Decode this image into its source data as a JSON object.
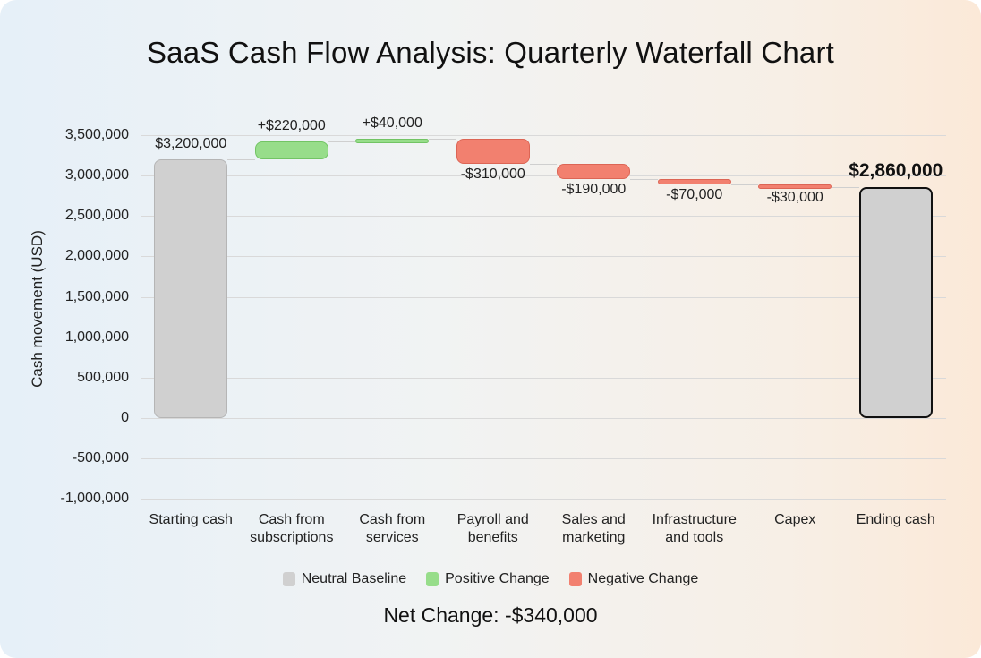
{
  "title": "SaaS Cash Flow Analysis: Quarterly Waterfall Chart",
  "footer": {
    "net_change": "Net Change: -$340,000"
  },
  "legend": [
    {
      "label": "Neutral Baseline",
      "color": "#d0d0d0"
    },
    {
      "label": "Positive Change",
      "color": "#97dd8a"
    },
    {
      "label": "Negative Change",
      "color": "#f2806f"
    }
  ],
  "axis": {
    "ylabel": "Cash movement (USD)",
    "yticks": [
      "3,500,000",
      "3,000,000",
      "2,500,000",
      "2,000,000",
      "1,500,000",
      "1,000,000",
      "500,000",
      "0",
      "-500,000",
      "-1,000,000"
    ]
  },
  "bars": [
    {
      "category": "Starting cash",
      "label": "$3,200,000"
    },
    {
      "category": "Cash from subscriptions",
      "label": "+$220,000"
    },
    {
      "category": "Cash from services",
      "label": "+$40,000"
    },
    {
      "category": "Payroll and benefits",
      "label": "-$310,000"
    },
    {
      "category": "Sales and marketing",
      "label": "-$190,000"
    },
    {
      "category": "Infrastructure and tools",
      "label": "-$70,000"
    },
    {
      "category": "Capex",
      "label": "-$30,000"
    },
    {
      "category": "Ending cash",
      "label": "$2,860,000"
    }
  ],
  "chart_data": {
    "type": "bar",
    "subtype": "waterfall",
    "title": "SaaS Cash Flow Analysis: Quarterly Waterfall Chart",
    "xlabel": "",
    "ylabel": "Cash movement (USD)",
    "ylim": [
      -1000000,
      3500000
    ],
    "yticks": [
      -1000000,
      -500000,
      0,
      500000,
      1000000,
      1500000,
      2000000,
      2500000,
      3000000,
      3500000
    ],
    "grid": true,
    "legend_position": "bottom",
    "categories": [
      "Starting cash",
      "Cash from subscriptions",
      "Cash from services",
      "Payroll and benefits",
      "Sales and marketing",
      "Infrastructure and tools",
      "Capex",
      "Ending cash"
    ],
    "values": [
      3200000,
      220000,
      40000,
      -310000,
      -190000,
      -70000,
      -30000,
      2860000
    ],
    "kinds": [
      "total",
      "delta",
      "delta",
      "delta",
      "delta",
      "delta",
      "delta",
      "total"
    ],
    "bar_ranges": [
      [
        0,
        3200000
      ],
      [
        3200000,
        3420000
      ],
      [
        3420000,
        3460000
      ],
      [
        3150000,
        3460000
      ],
      [
        2960000,
        3150000
      ],
      [
        2890000,
        2960000
      ],
      [
        2860000,
        2890000
      ],
      [
        0,
        2860000
      ]
    ],
    "data_labels": [
      "$3,200,000",
      "+$220,000",
      "+$40,000",
      "-$310,000",
      "-$190,000",
      "-$70,000",
      "-$30,000",
      "$2,860,000"
    ],
    "legend": [
      "Neutral Baseline",
      "Positive Change",
      "Negative Change"
    ],
    "annotations": [
      "Net Change: -$340,000"
    ],
    "colors": {
      "neutral": "#d0d0d0",
      "positive": "#97dd8a",
      "negative": "#f2806f"
    }
  }
}
